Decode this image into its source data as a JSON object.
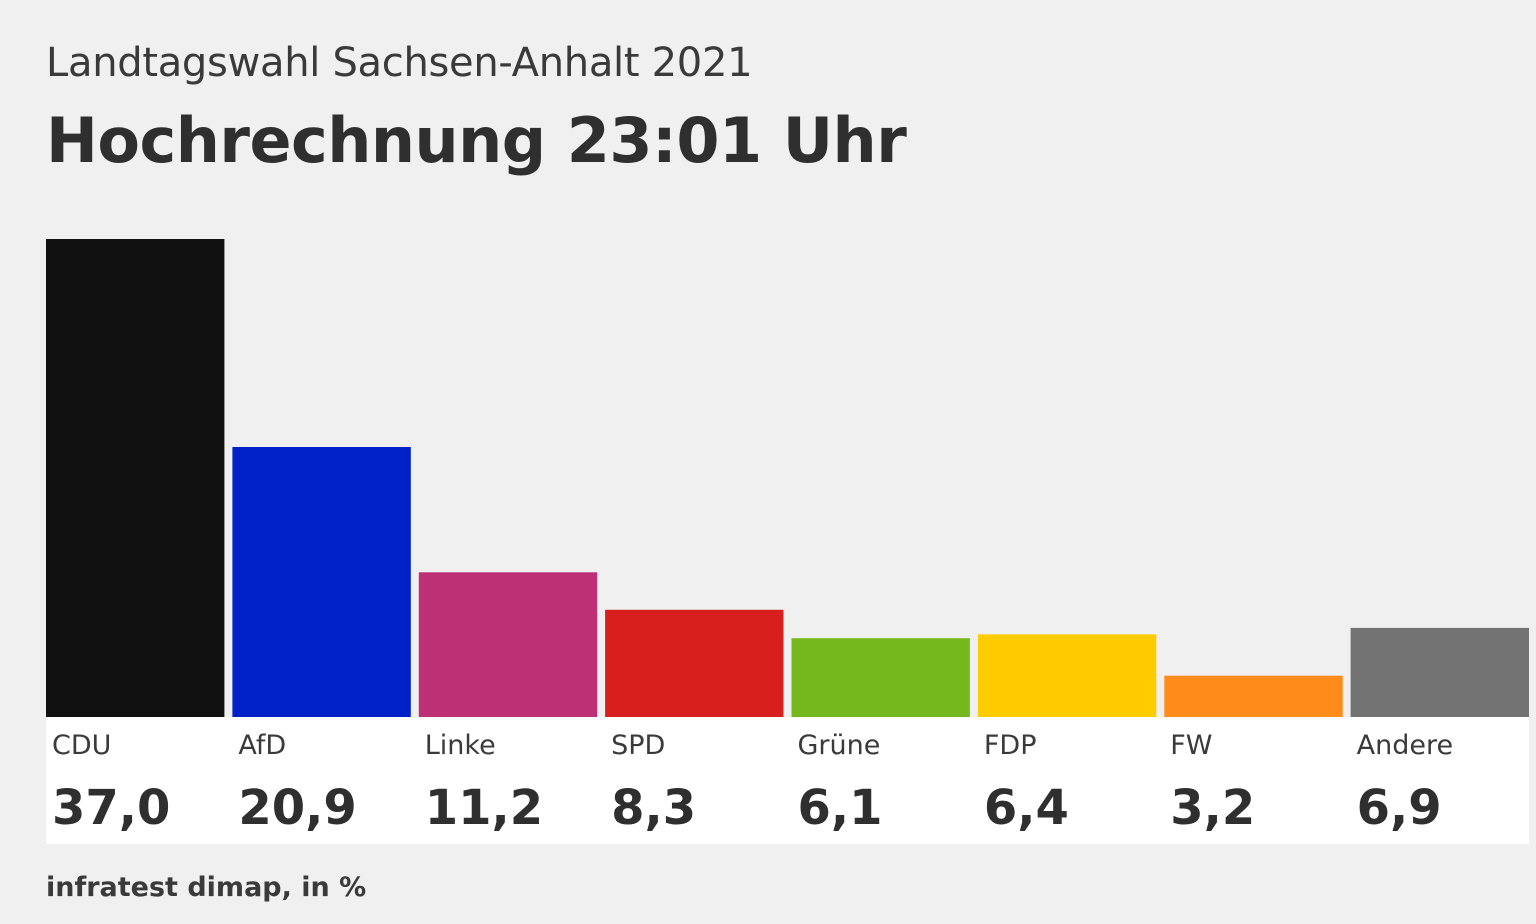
{
  "header": {
    "subtitle": "Landtagswahl Sachsen-Anhalt 2021",
    "title": "Hochrechnung 23:01 Uhr"
  },
  "footer": {
    "source": "infratest dimap, in %"
  },
  "chart_data": {
    "type": "bar",
    "title": "Hochrechnung 23:01 Uhr",
    "subtitle": "Landtagswahl Sachsen-Anhalt 2021",
    "xlabel": "",
    "ylabel": "",
    "ylim": [
      0,
      37
    ],
    "grid": false,
    "categories": [
      "CDU",
      "AfD",
      "Linke",
      "SPD",
      "Grüne",
      "FDP",
      "FW",
      "Andere"
    ],
    "values": [
      37.0,
      20.9,
      11.2,
      8.3,
      6.1,
      6.4,
      3.2,
      6.9
    ],
    "value_labels": [
      "37,0",
      "20,9",
      "11,2",
      "8,3",
      "6,1",
      "6,4",
      "3,2",
      "6,9"
    ],
    "colors": [
      "#111111",
      "#0020c8",
      "#bd3075",
      "#d71f1d",
      "#75b81d",
      "#ffcc00",
      "#ff8c1a",
      "#737373"
    ]
  }
}
